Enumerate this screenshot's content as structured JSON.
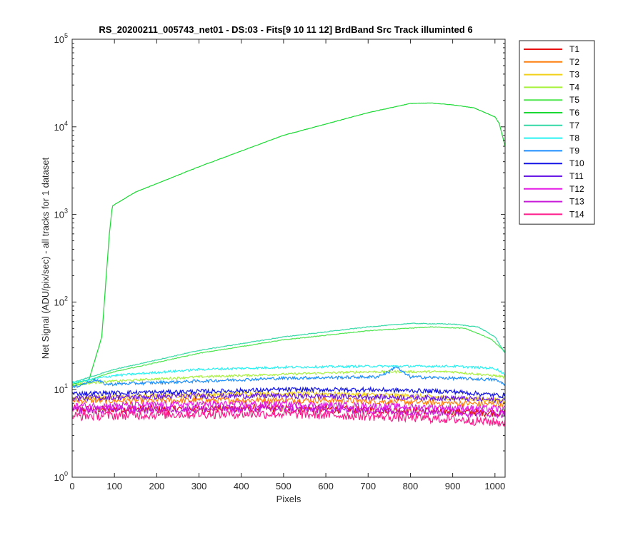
{
  "chart_data": {
    "type": "line",
    "title": "RS_20200211_005743_net01 - DS:03 - Fits[9  10  11  12]   BrdBand Src     Track illuminted 6",
    "xlabel": "Pixels",
    "ylabel": "Net Signal (ADU/pix/sec) - all tracks for 1 dataset",
    "xlim": [
      0,
      1024
    ],
    "ylim": [
      1,
      100000
    ],
    "yscale": "log",
    "xticks": [
      "0",
      "100",
      "200",
      "300",
      "400",
      "500",
      "600",
      "700",
      "800",
      "900",
      "1000"
    ],
    "yticks": [
      {
        "base": "10",
        "exp": "0"
      },
      {
        "base": "10",
        "exp": "1"
      },
      {
        "base": "10",
        "exp": "2"
      },
      {
        "base": "10",
        "exp": "3"
      },
      {
        "base": "10",
        "exp": "4"
      },
      {
        "base": "10",
        "exp": "5"
      }
    ],
    "grid": false,
    "legend_position": "outside-right",
    "series": [
      {
        "name": "T1",
        "color": "#e81010",
        "points": [
          [
            0,
            6
          ],
          [
            200,
            6
          ],
          [
            400,
            6.2
          ],
          [
            600,
            6
          ],
          [
            800,
            5.8
          ],
          [
            1024,
            5.4
          ]
        ],
        "noise": 0.1
      },
      {
        "name": "T2",
        "color": "#ff7f0e",
        "points": [
          [
            0,
            7.5
          ],
          [
            200,
            7.5
          ],
          [
            400,
            7.6
          ],
          [
            600,
            7.6
          ],
          [
            800,
            7.2
          ],
          [
            1024,
            6.8
          ]
        ],
        "noise": 0.08
      },
      {
        "name": "T3",
        "color": "#f2d019",
        "points": [
          [
            0,
            8
          ],
          [
            200,
            8.5
          ],
          [
            400,
            9
          ],
          [
            600,
            9
          ],
          [
            800,
            8.5
          ],
          [
            1024,
            7.5
          ]
        ],
        "noise": 0.06
      },
      {
        "name": "T4",
        "color": "#a6f23a",
        "points": [
          [
            0,
            11.5
          ],
          [
            100,
            12.5
          ],
          [
            300,
            14
          ],
          [
            500,
            15
          ],
          [
            700,
            16
          ],
          [
            900,
            16
          ],
          [
            1024,
            14
          ]
        ],
        "noise": 0.03
      },
      {
        "name": "T5",
        "color": "#4ee64e",
        "points": [
          [
            0,
            11
          ],
          [
            30,
            11.5
          ],
          [
            60,
            14
          ],
          [
            100,
            16
          ],
          [
            300,
            26
          ],
          [
            500,
            37
          ],
          [
            700,
            47
          ],
          [
            850,
            52
          ],
          [
            930,
            50
          ],
          [
            990,
            38
          ],
          [
            1024,
            27
          ]
        ],
        "noise": 0.01
      },
      {
        "name": "T6",
        "color": "#19d932",
        "points": [
          [
            0,
            11.5
          ],
          [
            40,
            13
          ],
          [
            70,
            40
          ],
          [
            88,
            600
          ],
          [
            95,
            1250
          ],
          [
            150,
            1800
          ],
          [
            300,
            3500
          ],
          [
            500,
            8000
          ],
          [
            700,
            14500
          ],
          [
            800,
            18500
          ],
          [
            850,
            18700
          ],
          [
            900,
            17800
          ],
          [
            950,
            16500
          ],
          [
            1000,
            13000
          ],
          [
            1010,
            11000
          ],
          [
            1024,
            6000
          ]
        ],
        "noise": 0.005
      },
      {
        "name": "T7",
        "color": "#33d9a6",
        "points": [
          [
            0,
            12
          ],
          [
            100,
            17
          ],
          [
            300,
            28
          ],
          [
            500,
            40
          ],
          [
            700,
            52
          ],
          [
            800,
            57
          ],
          [
            900,
            56
          ],
          [
            960,
            52
          ],
          [
            1000,
            40
          ],
          [
            1024,
            26
          ]
        ],
        "noise": 0.01
      },
      {
        "name": "T8",
        "color": "#26f2f2",
        "points": [
          [
            0,
            12
          ],
          [
            100,
            14.5
          ],
          [
            300,
            17
          ],
          [
            500,
            18
          ],
          [
            700,
            18.5
          ],
          [
            900,
            18.5
          ],
          [
            1000,
            17.5
          ],
          [
            1024,
            15
          ]
        ],
        "noise": 0.03
      },
      {
        "name": "T9",
        "color": "#1a8cff",
        "points": [
          [
            0,
            10.5
          ],
          [
            55,
            13
          ],
          [
            80,
            11.5
          ],
          [
            300,
            12.5
          ],
          [
            500,
            13.5
          ],
          [
            720,
            14
          ],
          [
            750,
            16
          ],
          [
            765,
            18.5
          ],
          [
            780,
            16
          ],
          [
            800,
            14
          ],
          [
            1000,
            13
          ],
          [
            1024,
            11.5
          ]
        ],
        "noise": 0.04
      },
      {
        "name": "T10",
        "color": "#1414e6",
        "points": [
          [
            0,
            9
          ],
          [
            300,
            9.5
          ],
          [
            500,
            10
          ],
          [
            700,
            10
          ],
          [
            900,
            9.5
          ],
          [
            1024,
            8.5
          ]
        ],
        "noise": 0.06
      },
      {
        "name": "T11",
        "color": "#6a1ae6",
        "points": [
          [
            0,
            8
          ],
          [
            300,
            8.5
          ],
          [
            500,
            8.5
          ],
          [
            700,
            8.3
          ],
          [
            900,
            8
          ],
          [
            1024,
            7.5
          ]
        ],
        "noise": 0.07
      },
      {
        "name": "T12",
        "color": "#e61ae6",
        "points": [
          [
            0,
            6.5
          ],
          [
            300,
            6.8
          ],
          [
            500,
            6.8
          ],
          [
            700,
            6.5
          ],
          [
            900,
            6.2
          ],
          [
            1024,
            6
          ]
        ],
        "noise": 0.09
      },
      {
        "name": "T13",
        "color": "#c81ad9",
        "points": [
          [
            0,
            5.8
          ],
          [
            300,
            6
          ],
          [
            500,
            6
          ],
          [
            700,
            5.8
          ],
          [
            900,
            5.5
          ],
          [
            1024,
            5.3
          ]
        ],
        "noise": 0.1
      },
      {
        "name": "T14",
        "color": "#ff1a8c",
        "points": [
          [
            0,
            5
          ],
          [
            300,
            5.3
          ],
          [
            500,
            5.3
          ],
          [
            700,
            5
          ],
          [
            900,
            4.6
          ],
          [
            1024,
            4.2
          ]
        ],
        "noise": 0.12
      }
    ]
  }
}
